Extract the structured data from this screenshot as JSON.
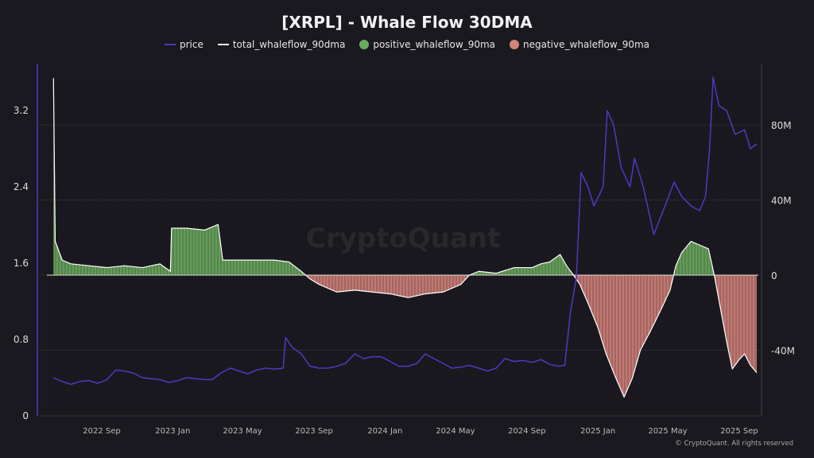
{
  "chart_data": {
    "type": "line",
    "title": "[XRPL] - Whale Flow 30DMA",
    "legend_position": "top",
    "grid": true,
    "left_axis": {
      "ticks": [
        "0",
        "0.8",
        "1.6",
        "2.4",
        "3.2"
      ],
      "ylim": [
        0,
        3.6
      ]
    },
    "right_axis": {
      "ticks": [
        "-40M",
        "0",
        "40M",
        "80M"
      ],
      "ylim": [
        -75,
        115
      ],
      "unit": "M"
    },
    "x_ticks": [
      {
        "date": "2022-09-01",
        "label": "2022 Sep"
      },
      {
        "date": "2023-01-01",
        "label": "2023 Jan"
      },
      {
        "date": "2023-05-01",
        "label": "2023 May"
      },
      {
        "date": "2023-09-01",
        "label": "2023 Sep"
      },
      {
        "date": "2024-01-01",
        "label": "2024 Jan"
      },
      {
        "date": "2024-05-01",
        "label": "2024 May"
      },
      {
        "date": "2024-09-01",
        "label": "2024 Sep"
      },
      {
        "date": "2025-01-01",
        "label": "2025 Jan"
      },
      {
        "date": "2025-05-01",
        "label": "2025 May"
      },
      {
        "date": "2025-09-01",
        "label": "2025 Sep"
      }
    ],
    "series": [
      {
        "name": "price",
        "axis": "left",
        "color": "#4b3bc4",
        "points": [
          [
            "2022-06-10",
            0.4
          ],
          [
            "2022-06-25",
            0.36
          ],
          [
            "2022-07-10",
            0.33
          ],
          [
            "2022-07-25",
            0.36
          ],
          [
            "2022-08-10",
            0.37
          ],
          [
            "2022-08-25",
            0.34
          ],
          [
            "2022-09-10",
            0.38
          ],
          [
            "2022-09-25",
            0.48
          ],
          [
            "2022-10-10",
            0.47
          ],
          [
            "2022-10-25",
            0.45
          ],
          [
            "2022-11-10",
            0.4
          ],
          [
            "2022-11-25",
            0.39
          ],
          [
            "2022-12-10",
            0.38
          ],
          [
            "2022-12-25",
            0.35
          ],
          [
            "2023-01-10",
            0.37
          ],
          [
            "2023-01-25",
            0.4
          ],
          [
            "2023-02-10",
            0.39
          ],
          [
            "2023-02-25",
            0.38
          ],
          [
            "2023-03-10",
            0.38
          ],
          [
            "2023-03-25",
            0.45
          ],
          [
            "2023-04-10",
            0.5
          ],
          [
            "2023-04-25",
            0.47
          ],
          [
            "2023-05-10",
            0.44
          ],
          [
            "2023-05-25",
            0.48
          ],
          [
            "2023-06-10",
            0.5
          ],
          [
            "2023-06-25",
            0.49
          ],
          [
            "2023-07-10",
            0.5
          ],
          [
            "2023-07-14",
            0.82
          ],
          [
            "2023-07-25",
            0.72
          ],
          [
            "2023-08-10",
            0.65
          ],
          [
            "2023-08-25",
            0.52
          ],
          [
            "2023-09-10",
            0.5
          ],
          [
            "2023-09-25",
            0.5
          ],
          [
            "2023-10-10",
            0.52
          ],
          [
            "2023-10-25",
            0.55
          ],
          [
            "2023-11-10",
            0.65
          ],
          [
            "2023-11-25",
            0.6
          ],
          [
            "2023-12-10",
            0.62
          ],
          [
            "2023-12-25",
            0.62
          ],
          [
            "2024-01-10",
            0.57
          ],
          [
            "2024-01-25",
            0.52
          ],
          [
            "2024-02-10",
            0.52
          ],
          [
            "2024-02-25",
            0.55
          ],
          [
            "2024-03-10",
            0.65
          ],
          [
            "2024-03-25",
            0.6
          ],
          [
            "2024-04-10",
            0.55
          ],
          [
            "2024-04-25",
            0.5
          ],
          [
            "2024-05-10",
            0.51
          ],
          [
            "2024-05-25",
            0.53
          ],
          [
            "2024-06-10",
            0.5
          ],
          [
            "2024-06-25",
            0.47
          ],
          [
            "2024-07-10",
            0.5
          ],
          [
            "2024-07-25",
            0.6
          ],
          [
            "2024-08-10",
            0.57
          ],
          [
            "2024-08-25",
            0.58
          ],
          [
            "2024-09-10",
            0.56
          ],
          [
            "2024-09-25",
            0.59
          ],
          [
            "2024-10-10",
            0.54
          ],
          [
            "2024-10-25",
            0.52
          ],
          [
            "2024-11-05",
            0.53
          ],
          [
            "2024-11-15",
            1.1
          ],
          [
            "2024-11-25",
            1.45
          ],
          [
            "2024-12-03",
            2.55
          ],
          [
            "2024-12-15",
            2.4
          ],
          [
            "2024-12-25",
            2.2
          ],
          [
            "2025-01-10",
            2.4
          ],
          [
            "2025-01-17",
            3.2
          ],
          [
            "2025-01-28",
            3.05
          ],
          [
            "2025-02-10",
            2.6
          ],
          [
            "2025-02-25",
            2.4
          ],
          [
            "2025-03-05",
            2.7
          ],
          [
            "2025-03-20",
            2.4
          ],
          [
            "2025-04-07",
            1.9
          ],
          [
            "2025-04-20",
            2.1
          ],
          [
            "2025-05-12",
            2.45
          ],
          [
            "2025-05-25",
            2.3
          ],
          [
            "2025-06-10",
            2.2
          ],
          [
            "2025-06-25",
            2.15
          ],
          [
            "2025-07-05",
            2.3
          ],
          [
            "2025-07-12",
            2.8
          ],
          [
            "2025-07-18",
            3.55
          ],
          [
            "2025-07-28",
            3.25
          ],
          [
            "2025-08-10",
            3.2
          ],
          [
            "2025-08-25",
            2.95
          ],
          [
            "2025-09-10",
            3.0
          ],
          [
            "2025-09-20",
            2.8
          ],
          [
            "2025-10-01",
            2.85
          ]
        ]
      },
      {
        "name": "total_whaleflow_90dma",
        "axis": "right",
        "color": "#ffffff",
        "points": [
          [
            "2022-06-10",
            105
          ],
          [
            "2022-06-13",
            18
          ],
          [
            "2022-06-25",
            8
          ],
          [
            "2022-07-10",
            6
          ],
          [
            "2022-08-10",
            5
          ],
          [
            "2022-09-10",
            4
          ],
          [
            "2022-10-10",
            5
          ],
          [
            "2022-11-10",
            4
          ],
          [
            "2022-12-10",
            6
          ],
          [
            "2022-12-28",
            2
          ],
          [
            "2022-12-30",
            25
          ],
          [
            "2023-01-25",
            25
          ],
          [
            "2023-02-25",
            24
          ],
          [
            "2023-03-20",
            27
          ],
          [
            "2023-03-28",
            8
          ],
          [
            "2023-04-25",
            8
          ],
          [
            "2023-05-25",
            8
          ],
          [
            "2023-06-25",
            8
          ],
          [
            "2023-07-20",
            7
          ],
          [
            "2023-08-10",
            2
          ],
          [
            "2023-08-25",
            -2
          ],
          [
            "2023-09-10",
            -5
          ],
          [
            "2023-10-10",
            -9
          ],
          [
            "2023-11-10",
            -8
          ],
          [
            "2023-12-10",
            -9
          ],
          [
            "2024-01-10",
            -10
          ],
          [
            "2024-02-10",
            -12
          ],
          [
            "2024-03-10",
            -10
          ],
          [
            "2024-04-10",
            -9
          ],
          [
            "2024-05-10",
            -5
          ],
          [
            "2024-05-25",
            0
          ],
          [
            "2024-06-10",
            2
          ],
          [
            "2024-07-10",
            1
          ],
          [
            "2024-08-10",
            4
          ],
          [
            "2024-09-10",
            4
          ],
          [
            "2024-09-25",
            6
          ],
          [
            "2024-10-10",
            7
          ],
          [
            "2024-10-28",
            11
          ],
          [
            "2024-11-08",
            5
          ],
          [
            "2024-11-20",
            0
          ],
          [
            "2024-12-01",
            -5
          ],
          [
            "2024-12-15",
            -15
          ],
          [
            "2025-01-01",
            -28
          ],
          [
            "2025-01-15",
            -42
          ],
          [
            "2025-02-01",
            -55
          ],
          [
            "2025-02-15",
            -65
          ],
          [
            "2025-03-01",
            -55
          ],
          [
            "2025-03-15",
            -40
          ],
          [
            "2025-04-01",
            -30
          ],
          [
            "2025-04-20",
            -18
          ],
          [
            "2025-05-05",
            -8
          ],
          [
            "2025-05-15",
            5
          ],
          [
            "2025-05-25",
            12
          ],
          [
            "2025-06-10",
            18
          ],
          [
            "2025-06-25",
            16
          ],
          [
            "2025-07-10",
            14
          ],
          [
            "2025-07-20",
            0
          ],
          [
            "2025-08-01",
            -20
          ],
          [
            "2025-08-10",
            -35
          ],
          [
            "2025-08-20",
            -50
          ],
          [
            "2025-09-01",
            -45
          ],
          [
            "2025-09-10",
            -42
          ],
          [
            "2025-09-20",
            -48
          ],
          [
            "2025-10-01",
            -52
          ]
        ]
      }
    ],
    "area_series": [
      {
        "name": "positive_whaleflow_90ma",
        "color": "#6bab5e"
      },
      {
        "name": "negative_whaleflow_90ma",
        "color": "#d4837a"
      }
    ]
  },
  "watermark": "CryptoQuant",
  "credit": "© CryptoQuant. All rights reserved"
}
